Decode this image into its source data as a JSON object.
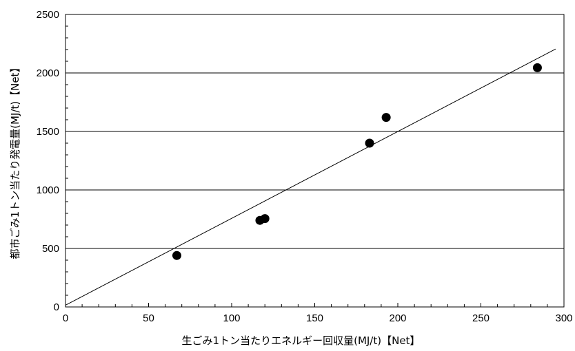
{
  "chart_data": {
    "type": "scatter",
    "xlabel": "生ごみ1トン当たりエネルギー回収量(MJ/t)【Net】",
    "ylabel": "都市ごみ1トン当たり発電量(MJ/t)【Net】",
    "xlim": [
      0,
      300
    ],
    "ylim": [
      0,
      2500
    ],
    "x_ticks": [
      0,
      50,
      100,
      150,
      200,
      250,
      300
    ],
    "y_ticks": [
      0,
      500,
      1000,
      1500,
      2000,
      2500
    ],
    "x_tick_labels": [
      "0",
      "50",
      "100",
      "150",
      "200",
      "250",
      "300"
    ],
    "y_tick_labels": [
      "0",
      "500",
      "1000",
      "1500",
      "2000",
      "2500"
    ],
    "gridlines": "horizontal",
    "legend": "none",
    "series": [
      {
        "points": [
          {
            "x": 67,
            "y": 440
          },
          {
            "x": 117,
            "y": 740
          },
          {
            "x": 120,
            "y": 755
          },
          {
            "x": 183,
            "y": 1400
          },
          {
            "x": 193,
            "y": 1620
          },
          {
            "x": 284,
            "y": 2045
          }
        ],
        "color": "#000000"
      }
    ],
    "trendline": {
      "x1": 0,
      "y1": 15,
      "x2": 295,
      "y2": 2205,
      "color": "#000000"
    }
  }
}
